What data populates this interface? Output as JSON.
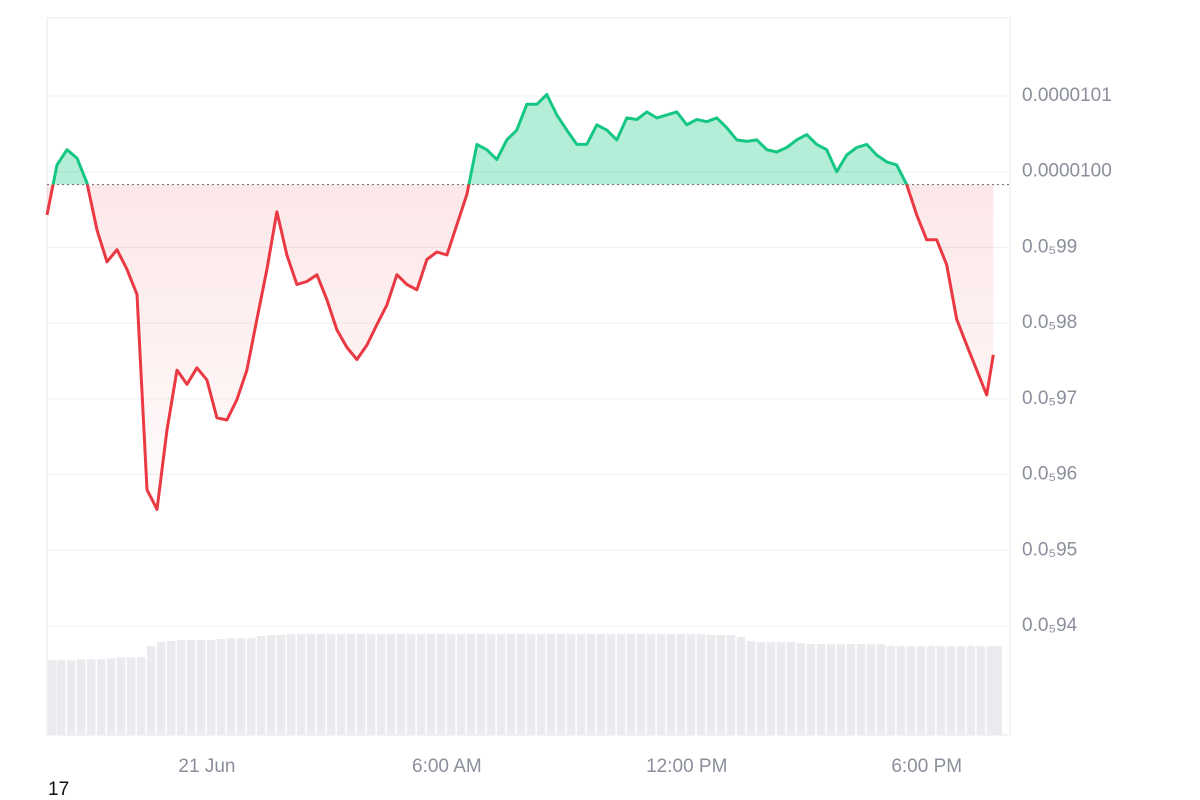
{
  "chart_data": {
    "type": "line",
    "x": [
      "06-20T20:00",
      "06-20T20:15",
      "06-20T20:30",
      "06-20T20:45",
      "06-20T21:00",
      "06-20T21:15",
      "06-20T21:30",
      "06-20T21:45",
      "06-20T22:00",
      "06-20T22:15",
      "06-20T22:30",
      "06-20T22:45",
      "06-20T23:00",
      "06-20T23:15",
      "06-20T23:30",
      "06-20T23:45",
      "06-21T00:00",
      "06-21T00:15",
      "06-21T00:30",
      "06-21T00:45",
      "06-21T01:00",
      "06-21T01:15",
      "06-21T01:30",
      "06-21T01:45",
      "06-21T02:00",
      "06-21T02:15",
      "06-21T02:30",
      "06-21T02:45",
      "06-21T03:00",
      "06-21T03:15",
      "06-21T03:30",
      "06-21T03:45",
      "06-21T04:00",
      "06-21T04:15",
      "06-21T04:30",
      "06-21T04:45",
      "06-21T05:00",
      "06-21T05:15",
      "06-21T05:30",
      "06-21T05:45",
      "06-21T06:00",
      "06-21T06:15",
      "06-21T06:30",
      "06-21T06:45",
      "06-21T07:00",
      "06-21T07:15",
      "06-21T07:30",
      "06-21T07:45",
      "06-21T08:00",
      "06-21T08:15",
      "06-21T08:30",
      "06-21T08:45",
      "06-21T09:00",
      "06-21T09:15",
      "06-21T09:30",
      "06-21T09:45",
      "06-21T10:00",
      "06-21T10:15",
      "06-21T10:30",
      "06-21T10:45",
      "06-21T11:00",
      "06-21T11:15",
      "06-21T11:30",
      "06-21T11:45",
      "06-21T12:00",
      "06-21T12:15",
      "06-21T12:30",
      "06-21T12:45",
      "06-21T13:00",
      "06-21T13:15",
      "06-21T13:30",
      "06-21T13:45",
      "06-21T14:00",
      "06-21T14:15",
      "06-21T14:30",
      "06-21T14:45",
      "06-21T15:00",
      "06-21T15:15",
      "06-21T15:30",
      "06-21T15:45",
      "06-21T16:00",
      "06-21T16:15",
      "06-21T16:30",
      "06-21T16:45",
      "06-21T17:00",
      "06-21T17:15",
      "06-21T17:30",
      "06-21T17:45",
      "06-21T18:00",
      "06-21T18:15",
      "06-21T18:30",
      "06-21T18:45",
      "06-21T19:00",
      "06-21T19:15",
      "06-21T19:30",
      "06-21T19:40"
    ],
    "values": [
      9.943e-06,
      1.0009e-05,
      1.0029e-05,
      1.0018e-05,
      9.985e-06,
      9.923e-06,
      9.881e-06,
      9.897e-06,
      9.871e-06,
      9.838e-06,
      9.58e-06,
      9.554e-06,
      9.659e-06,
      9.738e-06,
      9.719e-06,
      9.741e-06,
      9.725e-06,
      9.675e-06,
      9.672e-06,
      9.699e-06,
      9.738e-06,
      9.805e-06,
      9.871e-06,
      9.947e-06,
      9.89e-06,
      9.851e-06,
      9.855e-06,
      9.864e-06,
      9.831e-06,
      9.791e-06,
      9.768e-06,
      9.752e-06,
      9.771e-06,
      9.798e-06,
      9.824e-06,
      9.864e-06,
      9.851e-06,
      9.844e-06,
      9.884e-06,
      9.894e-06,
      9.89e-06,
      9.93e-06,
      9.97e-06,
      1.0036e-05,
      1.0029e-05,
      1.0016e-05,
      1.0042e-05,
      1.0055e-05,
      1.0089e-05,
      1.0089e-05,
      1.0102e-05,
      1.0075e-05,
      1.0055e-05,
      1.0036e-05,
      1.0036e-05,
      1.0062e-05,
      1.0055e-05,
      1.0042e-05,
      1.0071e-05,
      1.0069e-05,
      1.0079e-05,
      1.0071e-05,
      1.0075e-05,
      1.0079e-05,
      1.0062e-05,
      1.0069e-05,
      1.0066e-05,
      1.0071e-05,
      1.0058e-05,
      1.0042e-05,
      1.004e-05,
      1.0042e-05,
      1.0029e-05,
      1.0026e-05,
      1.0032e-05,
      1.0042e-05,
      1.0049e-05,
      1.0036e-05,
      1.0029e-05,
      1e-05,
      1.0022e-05,
      1.0032e-05,
      1.0036e-05,
      1.0022e-05,
      1.0013e-05,
      1.0009e-05,
      9.983e-06,
      9.943e-06,
      9.91e-06,
      9.91e-06,
      9.877e-06,
      9.805e-06,
      9.771e-06,
      9.738e-06,
      9.705e-06,
      9.758e-06
    ],
    "volume": [
      74,
      74,
      74,
      75,
      75,
      75,
      76,
      77,
      77,
      77,
      88,
      92,
      93,
      94,
      94,
      94,
      94,
      95,
      96,
      96,
      96,
      98,
      99,
      99,
      100,
      100,
      100,
      100,
      100,
      100,
      100,
      100,
      100,
      100,
      100,
      100,
      100,
      100,
      100,
      100,
      100,
      100,
      100,
      100,
      100,
      100,
      100,
      100,
      100,
      100,
      100,
      100,
      100,
      100,
      100,
      100,
      100,
      100,
      100,
      100,
      100,
      100,
      100,
      100,
      100,
      100,
      99,
      99,
      99,
      97,
      93,
      92,
      92,
      92,
      92,
      91,
      90,
      90,
      90,
      90,
      90,
      90,
      90,
      90,
      88,
      88,
      88,
      88,
      88,
      88,
      88,
      88,
      88,
      88,
      88,
      88
    ],
    "baseline": 9.983e-06,
    "up_color": "#16c784",
    "down_color": "#ea3943",
    "volume_color": "#e9ebef",
    "grid": true,
    "xlim": [
      "06-20T20:00",
      "06-21T20:05"
    ],
    "xticks": [
      {
        "value": "06-21T00:00",
        "label": "21 Jun"
      },
      {
        "value": "06-21T06:00",
        "label": "6:00 AM"
      },
      {
        "value": "06-21T12:00",
        "label": "12:00 PM"
      },
      {
        "value": "06-21T18:00",
        "label": "6:00 PM"
      }
    ],
    "ylim": [
      9.256e-06,
      1.0203e-05
    ],
    "yticks": [
      1.01e-05,
      {
        "value": 1e-05,
        "label": "0.0000100"
      },
      {
        "value": 9.9e-06,
        "label": "0.0₅99"
      },
      {
        "value": 9.8e-06,
        "label": "0.0₅98"
      },
      {
        "value": 9.7e-06,
        "label": "0.0₅97"
      },
      {
        "value": 9.6e-06,
        "label": "0.0₅96"
      },
      {
        "value": 9.5e-06,
        "label": "0.0₅95"
      },
      {
        "value": 9.4e-06,
        "label": "0.0₅94"
      }
    ]
  },
  "footer_text": "17"
}
